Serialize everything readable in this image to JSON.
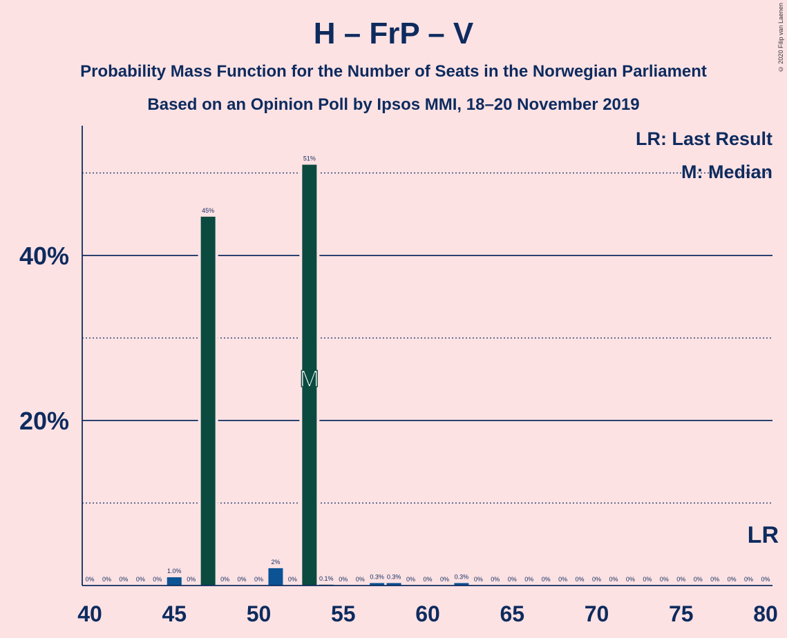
{
  "title": "H – FrP – V",
  "subtitle_1": "Probability Mass Function for the Number of Seats in the Norwegian Parliament",
  "subtitle_2": "Based on an Opinion Poll by Ipsos MMI, 18–20 November 2019",
  "copyright": "© 2020 Filip van Laenen",
  "legend": {
    "last_result": "LR: Last Result",
    "median": "M: Median"
  },
  "colors": {
    "background": "#fde2e4",
    "text": "#0d2b5e",
    "bar_dark": "#0a4a3f",
    "bar_blue": "#0b5394"
  },
  "chart_data": {
    "type": "bar",
    "x": [
      40,
      41,
      42,
      43,
      44,
      45,
      46,
      47,
      48,
      49,
      50,
      51,
      52,
      53,
      54,
      55,
      56,
      57,
      58,
      59,
      60,
      61,
      62,
      63,
      64,
      65,
      66,
      67,
      68,
      69,
      70,
      71,
      72,
      73,
      74,
      75,
      76,
      77,
      78,
      79,
      80
    ],
    "values": [
      0,
      0,
      0,
      0,
      0,
      1.0,
      0,
      44.7,
      0,
      0,
      0,
      2.1,
      0,
      51.0,
      0.1,
      0,
      0,
      0.3,
      0.3,
      0,
      0,
      0,
      0.3,
      0,
      0,
      0,
      0,
      0,
      0,
      0,
      0,
      0,
      0,
      0,
      0,
      0,
      0,
      0,
      0,
      0,
      0
    ],
    "labels": [
      "0%",
      "0%",
      "0%",
      "0%",
      "0%",
      "1.0%",
      "0%",
      "45%",
      "0%",
      "0%",
      "0%",
      "2%",
      "0%",
      "51%",
      "0.1%",
      "0%",
      "0%",
      "0.3%",
      "0.3%",
      "0%",
      "0%",
      "0%",
      "0.3%",
      "0%",
      "0%",
      "0%",
      "0%",
      "0%",
      "0%",
      "0%",
      "0%",
      "0%",
      "0%",
      "0%",
      "0%",
      "0%",
      "0%",
      "0%",
      "0%",
      "0%",
      "0%"
    ],
    "bar_colors": [
      "dark",
      "dark",
      "dark",
      "dark",
      "dark",
      "blue",
      "dark",
      "dark",
      "dark",
      "dark",
      "dark",
      "blue",
      "dark",
      "dark",
      "dark",
      "dark",
      "dark",
      "blue",
      "blue",
      "dark",
      "dark",
      "dark",
      "blue",
      "dark",
      "dark",
      "dark",
      "dark",
      "dark",
      "dark",
      "dark",
      "dark",
      "dark",
      "dark",
      "dark",
      "dark",
      "dark",
      "dark",
      "dark",
      "dark",
      "dark",
      "dark"
    ],
    "x_ticks": [
      40,
      45,
      50,
      55,
      60,
      65,
      70,
      75,
      80
    ],
    "x_tick_labels": [
      "40",
      "45",
      "50",
      "55",
      "60",
      "65",
      "70",
      "75",
      "80"
    ],
    "y_major_ticks": [
      20,
      40
    ],
    "y_tick_labels": [
      "20%",
      "40%"
    ],
    "y_minor_gridlines": [
      10,
      30,
      50
    ],
    "ylim": [
      0,
      55
    ],
    "median_seat": 53,
    "median_marker": "M",
    "last_result_marker": "LR",
    "last_result_seat": 80
  }
}
